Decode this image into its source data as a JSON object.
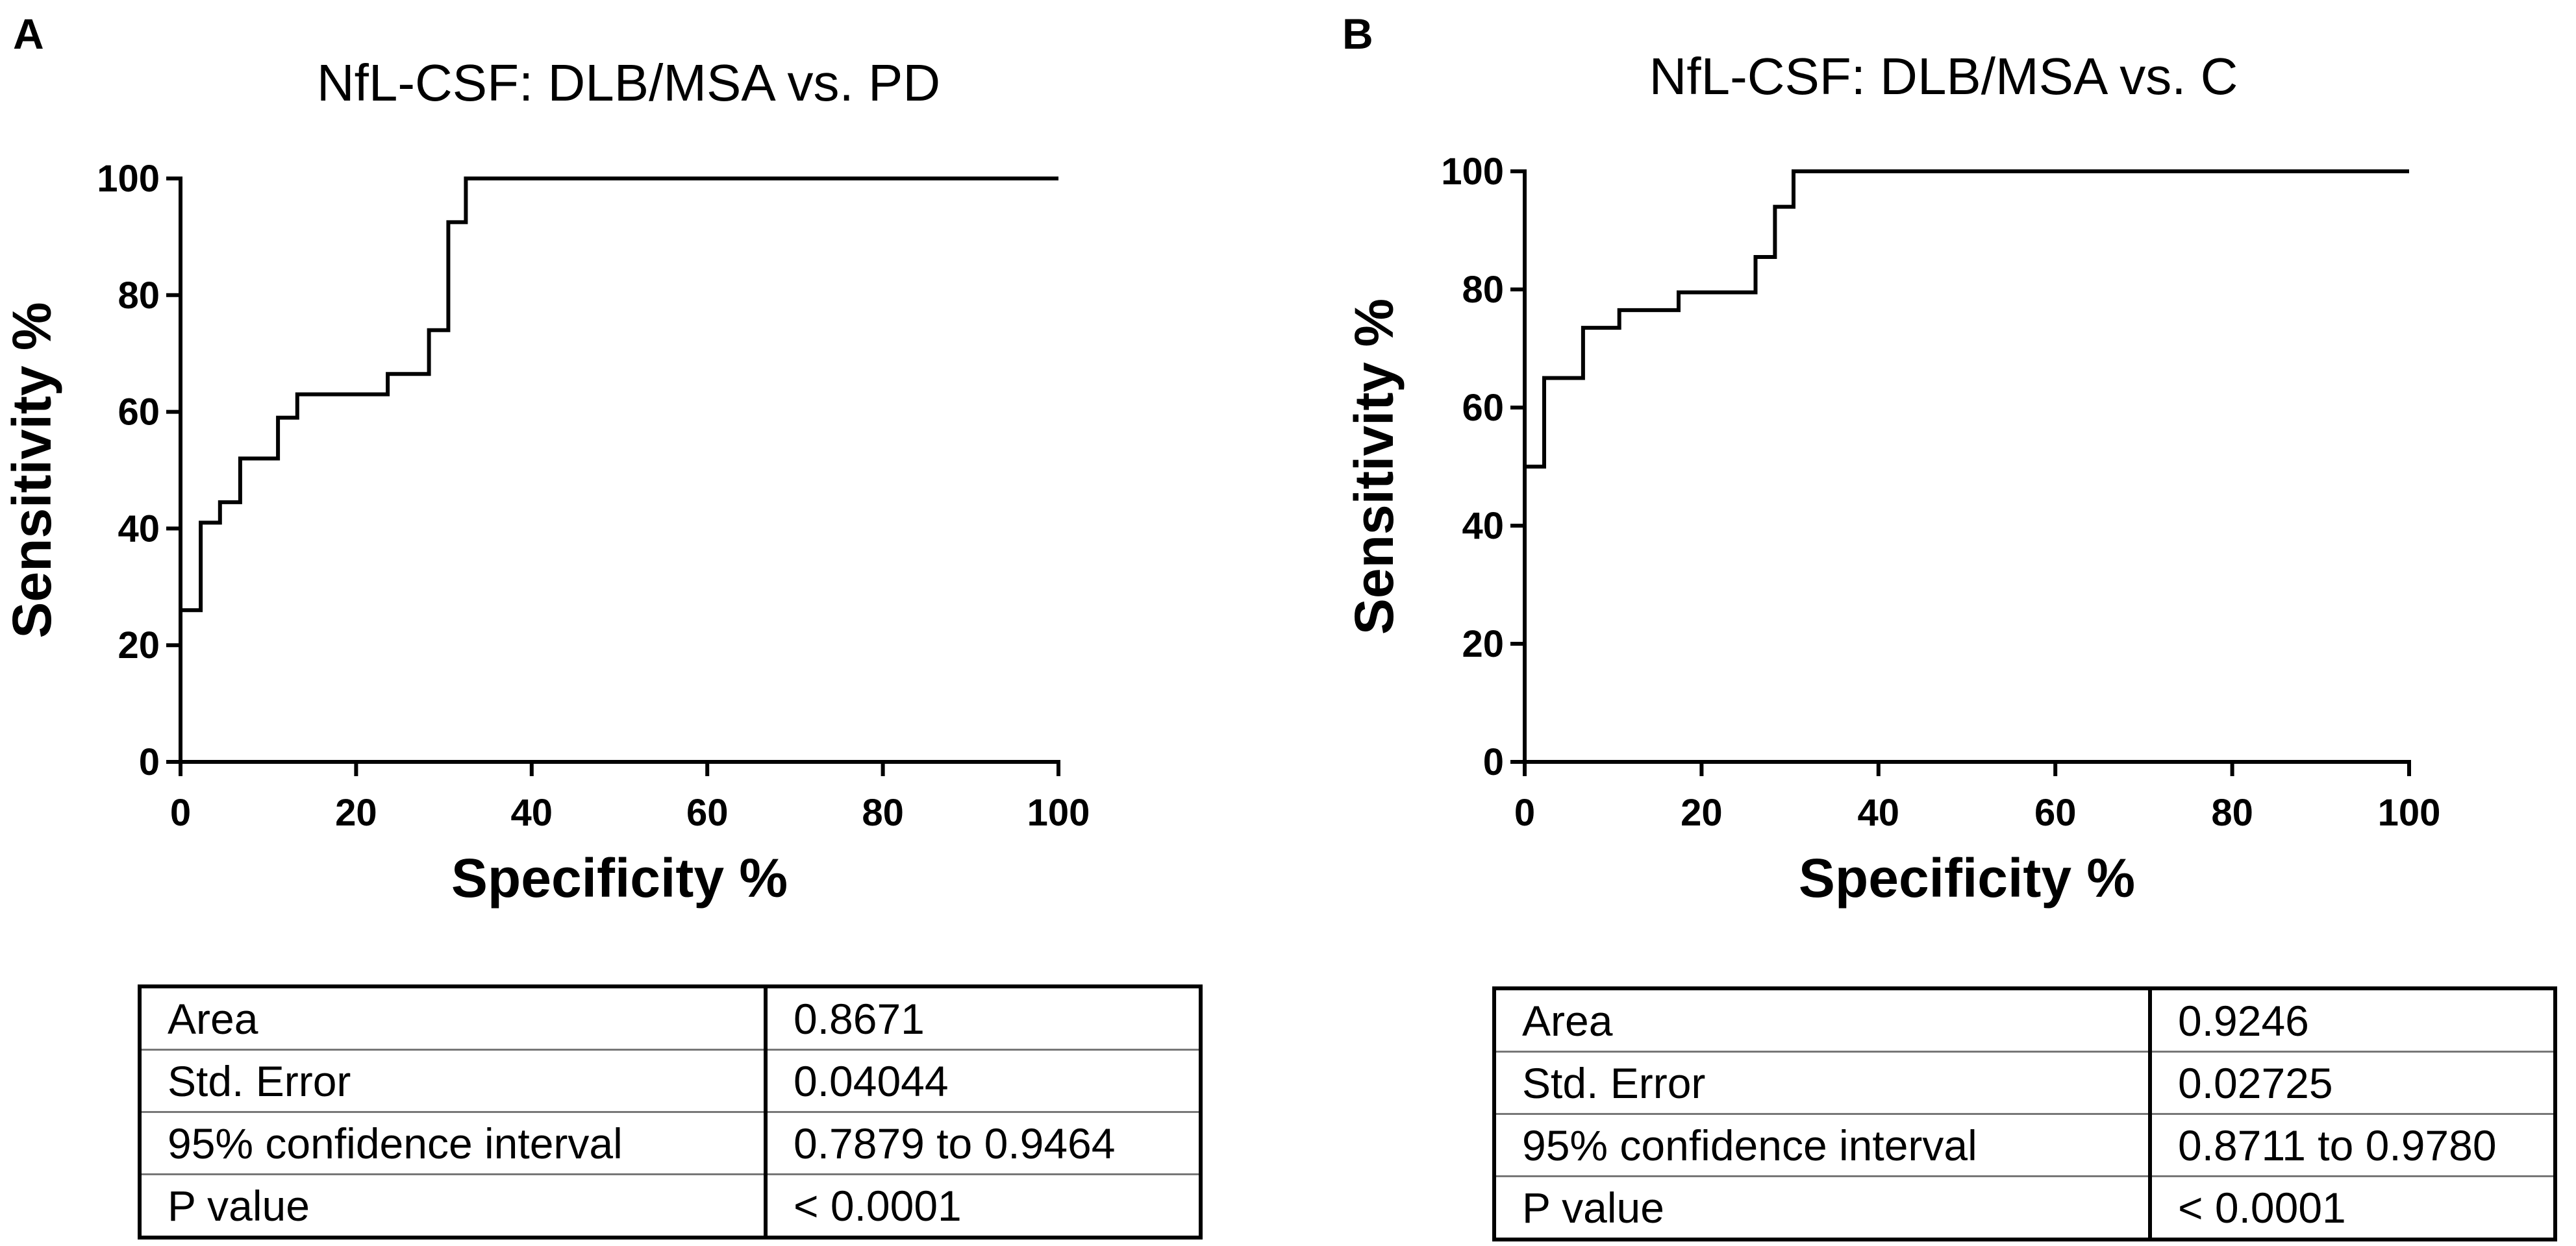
{
  "chart_data": [
    {
      "type": "line",
      "panel_label": "A",
      "title": "NfL-CSF: DLB/MSA vs. PD",
      "xlabel": "Specificity %",
      "ylabel": "Sensitivity %",
      "xlim": [
        0,
        100
      ],
      "ylim": [
        0,
        100
      ],
      "xticks": [
        "0",
        "20",
        "40",
        "60",
        "80",
        "100"
      ],
      "yticks": [
        "0",
        "20",
        "40",
        "60",
        "80",
        "100"
      ],
      "grid": false,
      "series": [
        {
          "name": "ROC curve",
          "x": [
            0,
            0,
            2.3,
            2.3,
            4.5,
            4.5,
            6.8,
            6.8,
            11.1,
            11.1,
            13.3,
            13.3,
            23.6,
            23.6,
            28.3,
            28.3,
            30.5,
            30.5,
            32.5,
            32.5,
            100
          ],
          "y": [
            0,
            26,
            26,
            41,
            41,
            44.5,
            44.5,
            52,
            52,
            59,
            59,
            63,
            63,
            66.5,
            66.5,
            74,
            74,
            92.5,
            92.5,
            100,
            100
          ]
        }
      ],
      "stats_table": [
        {
          "label": "Area",
          "value": "0.8671"
        },
        {
          "label": "Std. Error",
          "value": "0.04044"
        },
        {
          "label": "95% confidence interval",
          "value": "0.7879 to 0.9464"
        },
        {
          "label": "P value",
          "value": "< 0.0001"
        }
      ]
    },
    {
      "type": "line",
      "panel_label": "B",
      "title": "NfL-CSF: DLB/MSA vs. C",
      "xlabel": "Specificity %",
      "ylabel": "Sensitivity %",
      "xlim": [
        0,
        100
      ],
      "ylim": [
        0,
        100
      ],
      "xticks": [
        "0",
        "20",
        "40",
        "60",
        "80",
        "100"
      ],
      "yticks": [
        "0",
        "20",
        "40",
        "60",
        "80",
        "100"
      ],
      "grid": false,
      "series": [
        {
          "name": "ROC curve",
          "x": [
            0,
            0,
            2.2,
            2.2,
            6.6,
            6.6,
            10.7,
            10.7,
            17.4,
            17.4,
            26.1,
            26.1,
            28.3,
            28.3,
            30.4,
            30.4,
            100
          ],
          "y": [
            0,
            50,
            50,
            65,
            65,
            73.5,
            73.5,
            76.5,
            76.5,
            79.5,
            79.5,
            85.5,
            85.5,
            94,
            94,
            100,
            100
          ]
        }
      ],
      "stats_table": [
        {
          "label": "Area",
          "value": "0.9246"
        },
        {
          "label": "Std. Error",
          "value": "0.02725"
        },
        {
          "label": "95% confidence interval",
          "value": "0.8711 to 0.9780"
        },
        {
          "label": "P value",
          "value": "< 0.0001"
        }
      ]
    }
  ]
}
